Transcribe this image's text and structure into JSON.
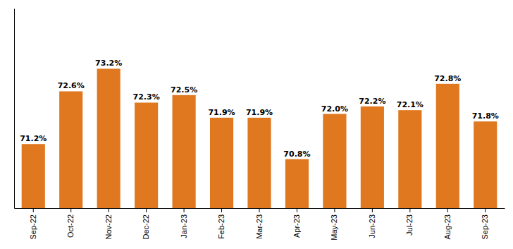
{
  "chart_data": {
    "type": "bar",
    "categories": [
      "Sep-22",
      "Oct-22",
      "Nov-22",
      "Dec-22",
      "Jan-23",
      "Feb-23",
      "Mar-23",
      "Apr-23",
      "May-23",
      "Jun-23",
      "Jul-23",
      "Aug-23",
      "Sep-23"
    ],
    "values": [
      71.2,
      72.6,
      73.2,
      72.3,
      72.5,
      71.9,
      71.9,
      70.8,
      72.0,
      72.2,
      72.1,
      72.8,
      71.8
    ],
    "value_labels": [
      "71.2%",
      "72.6%",
      "73.2%",
      "72.3%",
      "72.5%",
      "71.9%",
      "71.9%",
      "70.8%",
      "72.0%",
      "72.2%",
      "72.1%",
      "72.8%",
      "71.8%"
    ],
    "color": "#E07820",
    "ylim": [
      69.5,
      74.8
    ],
    "data_labels": true,
    "tick_labels": "x",
    "grid": false
  }
}
